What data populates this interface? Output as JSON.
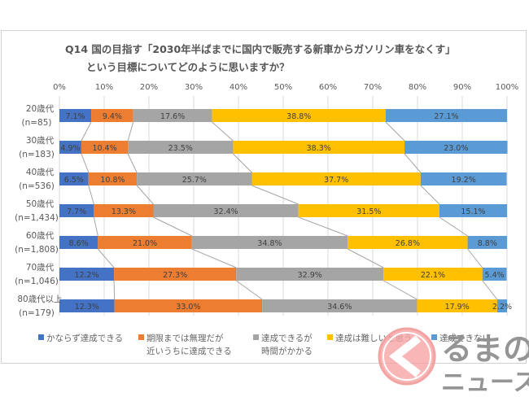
{
  "title": {
    "line1": "Q14 国の目指す「2030年半ばまでに国内で販売する新車からガソリン車をなくす」",
    "line2": "という目標についてどのように思いますか？"
  },
  "watermark": {
    "logo": "く",
    "line1": "るまの",
    "line2": "ニュース"
  },
  "chart_data": {
    "type": "bar",
    "orientation": "horizontal",
    "stacked": "100%",
    "title": "Q14 国の目指す「2030年半ばまでに国内で販売する新車からガソリン車をなくす」という目標についてどのように思いますか？",
    "xlabel": "",
    "ylabel": "",
    "xlim": [
      0,
      100
    ],
    "x_ticks": [
      "0%",
      "10%",
      "20%",
      "30%",
      "40%",
      "50%",
      "60%",
      "70%",
      "80%",
      "90%",
      "100%"
    ],
    "grid": true,
    "legend_position": "bottom",
    "series_lines": true,
    "categories": [
      {
        "label": "20歳代",
        "n": "(n=85)"
      },
      {
        "label": "30歳代",
        "n": "(n=183)"
      },
      {
        "label": "40歳代",
        "n": "(n=536)"
      },
      {
        "label": "50歳代",
        "n": "(n=1,434)"
      },
      {
        "label": "60歳代",
        "n": "(n=1,808)"
      },
      {
        "label": "70歳代",
        "n": "(n=1,046)"
      },
      {
        "label": "80歳代以上",
        "n": "(n=179)"
      }
    ],
    "series": [
      {
        "name": "かならず達成できる",
        "name_lines": [
          "かならず達成できる"
        ],
        "color": "#4472c4",
        "values": [
          7.1,
          4.9,
          6.5,
          7.7,
          8.6,
          12.2,
          12.3
        ]
      },
      {
        "name": "期限までは無理だが近いうちに達成できる",
        "name_lines": [
          "期限までは無理だが",
          "近いうちに達成できる"
        ],
        "color": "#ed7d31",
        "values": [
          9.4,
          10.4,
          10.8,
          13.3,
          21.0,
          27.3,
          33.0
        ]
      },
      {
        "name": "達成できるが時間がかかる",
        "name_lines": [
          "達成できるが",
          "時間がかかる"
        ],
        "color": "#a5a5a5",
        "values": [
          17.6,
          23.5,
          25.7,
          32.4,
          34.8,
          32.9,
          34.6
        ]
      },
      {
        "name": "達成は難しいと思う",
        "name_lines": [
          "達成は難しいと思う"
        ],
        "color": "#ffc000",
        "values": [
          38.8,
          38.3,
          37.7,
          31.5,
          26.8,
          22.1,
          17.9
        ]
      },
      {
        "name": "達成できない",
        "name_lines": [
          "達成できない"
        ],
        "color": "#5b9bd5",
        "values": [
          27.1,
          23.0,
          19.2,
          15.1,
          8.8,
          5.4,
          2.2
        ]
      }
    ]
  }
}
